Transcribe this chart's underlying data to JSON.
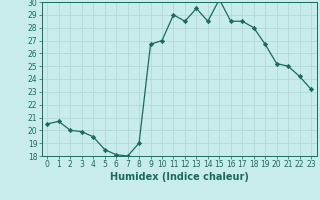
{
  "x": [
    0,
    1,
    2,
    3,
    4,
    5,
    6,
    7,
    8,
    9,
    10,
    11,
    12,
    13,
    14,
    15,
    16,
    17,
    18,
    19,
    20,
    21,
    22,
    23
  ],
  "y": [
    20.5,
    20.7,
    20.0,
    19.9,
    19.5,
    18.5,
    18.1,
    18.0,
    19.0,
    26.7,
    27.0,
    29.0,
    28.5,
    29.5,
    28.5,
    30.2,
    28.5,
    28.5,
    28.0,
    26.7,
    25.2,
    25.0,
    24.2,
    23.2
  ],
  "line_color": "#1a6b5a",
  "marker": "D",
  "marker_size": 2.2,
  "bg_color": "#c8ecec",
  "grid_color": "#b0d4d4",
  "xlabel": "Humidex (Indice chaleur)",
  "ylim": [
    18,
    30
  ],
  "xlim": [
    -0.5,
    23.5
  ],
  "yticks": [
    18,
    19,
    20,
    21,
    22,
    23,
    24,
    25,
    26,
    27,
    28,
    29,
    30
  ],
  "xticks": [
    0,
    1,
    2,
    3,
    4,
    5,
    6,
    7,
    8,
    9,
    10,
    11,
    12,
    13,
    14,
    15,
    16,
    17,
    18,
    19,
    20,
    21,
    22,
    23
  ],
  "tick_fontsize": 5.5,
  "xlabel_fontsize": 7.0,
  "axis_color": "#1a6b5a",
  "linewidth": 0.9
}
